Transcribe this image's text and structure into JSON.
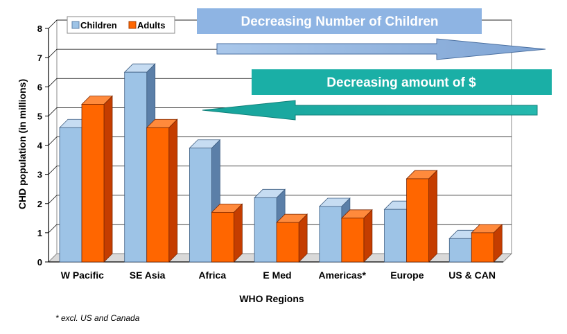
{
  "chart_data": {
    "type": "bar",
    "categories": [
      "W Pacific",
      "SE Asia",
      "Africa",
      "E Med",
      "Americas*",
      "Europe",
      "US & CAN"
    ],
    "series": [
      {
        "name": "Children",
        "values": [
          4.6,
          6.5,
          3.9,
          2.2,
          1.9,
          1.8,
          0.8
        ],
        "color": "#9DC3E6"
      },
      {
        "name": "Adults",
        "values": [
          5.4,
          4.6,
          1.7,
          1.35,
          1.5,
          2.85,
          1.0
        ],
        "color": "#FF6600"
      }
    ],
    "xlabel": "WHO Regions",
    "ylabel": "CHD population (in millions)",
    "ylim": [
      0,
      8
    ],
    "yticks": [
      "0",
      "1",
      "2",
      "3",
      "4",
      "5",
      "6",
      "7",
      "8"
    ],
    "grid": true,
    "legend": "top-left",
    "annotations": {
      "banner_children": "Decreasing Number of Children",
      "banner_money": "Decreasing amount of $"
    },
    "footnote": "* excl. US and Canada"
  },
  "colors": {
    "banner_children": "#8EB4E3",
    "banner_money": "#1AAFA6",
    "arrow_right": "#8EB4E3",
    "arrow_left": "#1AAFA6"
  }
}
